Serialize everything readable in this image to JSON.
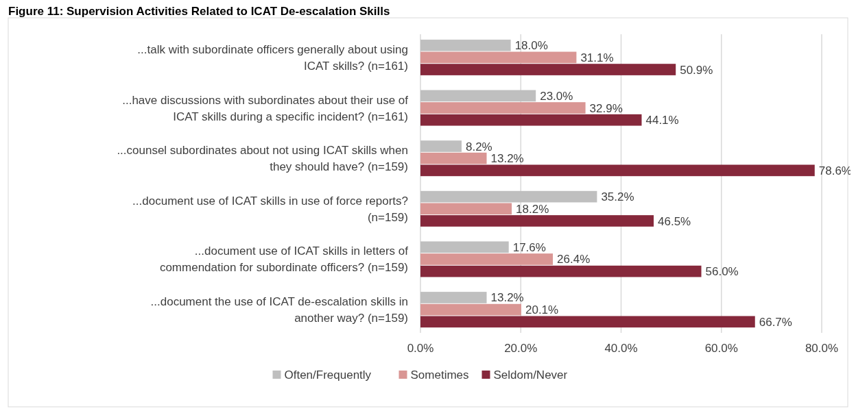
{
  "chart_data": {
    "type": "bar",
    "orientation": "horizontal",
    "title": "Figure 11: Supervision Activities Related to ICAT De-escalation Skills",
    "categories": [
      "...talk with subordinate officers generally about using ICAT skills? (n=161)",
      "...have discussions with subordinates about their use of ICAT skills during a specific incident? (n=161)",
      "...counsel subordinates about not using ICAT skills when they should have? (n=159)",
      "...document use of ICAT skills in use of force reports? (n=159)",
      "...document use of ICAT skills in letters of commendation for subordinate officers? (n=159)",
      "...document the use of ICAT de-escalation skills in another way? (n=159)"
    ],
    "series": [
      {
        "name": "Often/Frequently",
        "color": "#bfbfbf",
        "values": [
          18.0,
          23.0,
          8.2,
          35.2,
          17.6,
          13.2
        ],
        "value_labels": [
          "18.0%",
          "23.0%",
          "8.2%",
          "35.2%",
          "17.6%",
          "13.2%"
        ]
      },
      {
        "name": "Sometimes",
        "color": "#d99694",
        "values": [
          31.1,
          32.9,
          13.2,
          18.2,
          26.4,
          20.1
        ],
        "value_labels": [
          "31.1%",
          "32.9%",
          "13.2%",
          "18.2%",
          "26.4%",
          "20.1%"
        ]
      },
      {
        "name": "Seldom/Never",
        "color": "#86283b",
        "values": [
          50.9,
          44.1,
          78.6,
          46.5,
          56.0,
          66.7
        ],
        "value_labels": [
          "50.9%",
          "44.1%",
          "78.6%",
          "46.5%",
          "56.0%",
          "66.7%"
        ]
      }
    ],
    "xlim": [
      0,
      80
    ],
    "xticks": [
      {
        "value": 0,
        "label": "0.0%"
      },
      {
        "value": 20,
        "label": "20.0%"
      },
      {
        "value": 40,
        "label": "40.0%"
      },
      {
        "value": 60,
        "label": "60.0%"
      },
      {
        "value": 80,
        "label": "80.0%"
      }
    ],
    "grid": "x",
    "legend": "bottom"
  }
}
